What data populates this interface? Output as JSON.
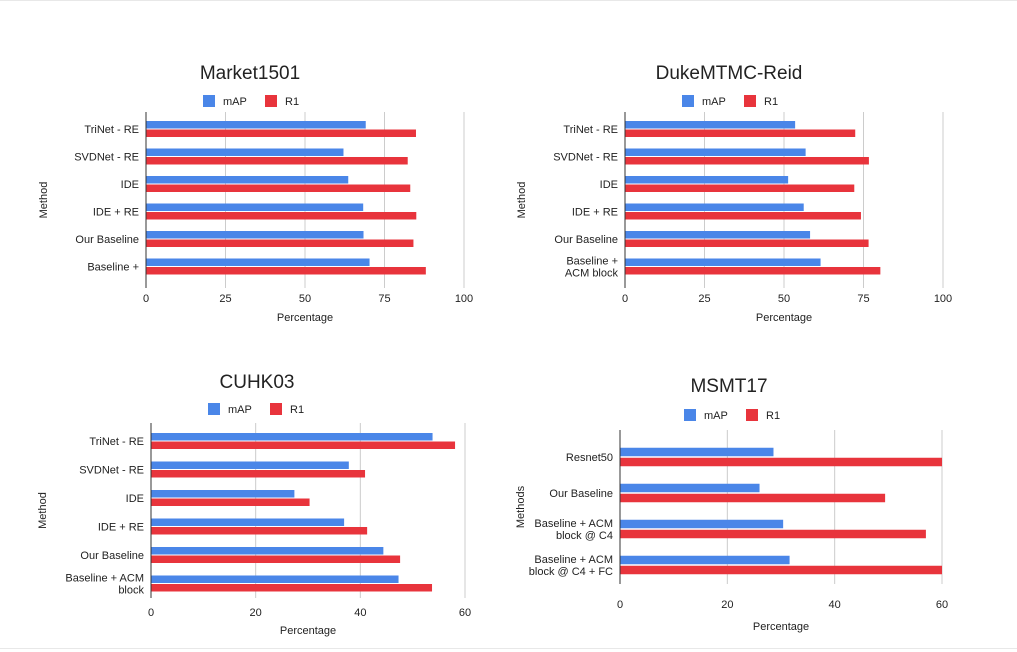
{
  "colors": {
    "mAP": "#4a86e8",
    "R1": "#e8343c",
    "grid": "#cccccc",
    "axis": "#333333"
  },
  "chart_data": [
    {
      "type": "bar",
      "orientation": "horizontal",
      "title": "Market1501",
      "xlabel": "Percentage",
      "ylabel": "Method",
      "xlim": [
        0,
        100
      ],
      "xticks": [
        0,
        25,
        50,
        75,
        100
      ],
      "legend": "top",
      "categories": [
        [
          "TriNet - RE"
        ],
        [
          "SVDNet - RE"
        ],
        [
          "IDE"
        ],
        [
          "IDE + RE"
        ],
        [
          "Our Baseline"
        ],
        [
          "Baseline +"
        ]
      ],
      "series": [
        {
          "name": "mAP",
          "values": [
            69.1,
            62.1,
            63.6,
            68.3,
            68.4,
            70.3
          ]
        },
        {
          "name": "R1",
          "values": [
            84.9,
            82.3,
            83.1,
            85.0,
            84.1,
            88.0
          ]
        }
      ]
    },
    {
      "type": "bar",
      "orientation": "horizontal",
      "title": "DukeMTMC-Reid",
      "xlabel": "Percentage",
      "ylabel": "Method",
      "xlim": [
        0,
        100
      ],
      "xticks": [
        0,
        25,
        50,
        75,
        100
      ],
      "legend": "top",
      "categories": [
        [
          "TriNet - RE"
        ],
        [
          "SVDNet - RE"
        ],
        [
          "IDE"
        ],
        [
          "IDE + RE"
        ],
        [
          "Our Baseline"
        ],
        [
          "Baseline +",
          "ACM block"
        ]
      ],
      "series": [
        {
          "name": "mAP",
          "values": [
            53.5,
            56.8,
            51.3,
            56.2,
            58.2,
            61.5
          ]
        },
        {
          "name": "R1",
          "values": [
            72.4,
            76.7,
            72.1,
            74.2,
            76.6,
            80.3
          ]
        }
      ]
    },
    {
      "type": "bar",
      "orientation": "horizontal",
      "title": "CUHK03",
      "xlabel": "Percentage",
      "ylabel": "Method",
      "xlim": [
        0,
        60
      ],
      "xticks": [
        0,
        20,
        40,
        60
      ],
      "legend": "top",
      "categories": [
        [
          "TriNet - RE"
        ],
        [
          "SVDNet - RE"
        ],
        [
          "IDE"
        ],
        [
          "IDE + RE"
        ],
        [
          "Our Baseline"
        ],
        [
          "Baseline + ACM",
          "block"
        ]
      ],
      "series": [
        {
          "name": "mAP",
          "values": [
            53.8,
            37.8,
            27.4,
            36.9,
            44.4,
            47.3
          ]
        },
        {
          "name": "R1",
          "values": [
            58.1,
            40.9,
            30.3,
            41.3,
            47.6,
            53.7
          ]
        }
      ]
    },
    {
      "type": "bar",
      "orientation": "horizontal",
      "title": "MSMT17",
      "xlabel": "Percentage",
      "ylabel": "Methods",
      "xlim": [
        0,
        60
      ],
      "xticks": [
        0,
        20,
        40,
        60
      ],
      "legend": "top",
      "categories": [
        [
          "Resnet50"
        ],
        [
          "Our Baseline"
        ],
        [
          "Baseline + ACM",
          "block @ C4"
        ],
        [
          "Baseline + ACM",
          "block @ C4 + FC"
        ]
      ],
      "series": [
        {
          "name": "mAP",
          "values": [
            28.6,
            26.0,
            30.4,
            31.6
          ]
        },
        {
          "name": "R1",
          "values": [
            60.0,
            49.4,
            57.0,
            60.0
          ]
        }
      ]
    }
  ]
}
